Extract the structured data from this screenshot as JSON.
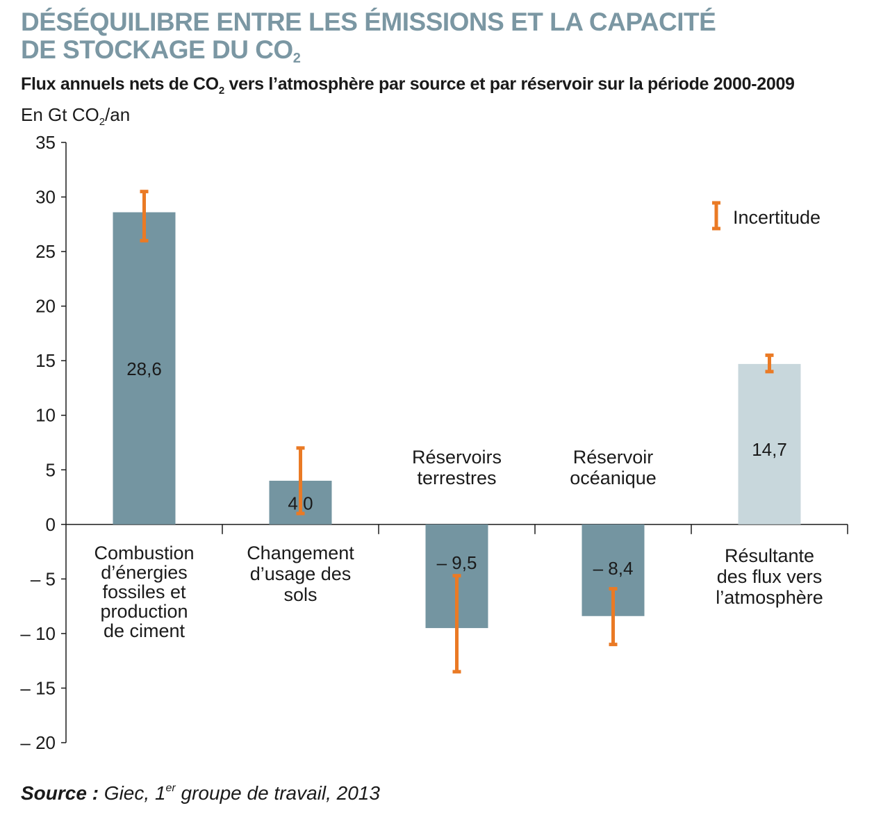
{
  "header": {
    "title_line1": "DÉSÉQUILIBRE ENTRE LES ÉMISSIONS ET LA CAPACITÉ",
    "title_line2_main": "DE STOCKAGE DU CO",
    "title_line2_sub": "2",
    "subtitle_pre": "Flux annuels nets de CO",
    "subtitle_sub": "2",
    "subtitle_post": " vers l’atmosphère par source et par réservoir sur la période 2000-2009",
    "unit_pre": "En Gt CO",
    "unit_sub": "2",
    "unit_post": "/an"
  },
  "source": {
    "label": "Source :",
    "text_pre": " Giec, 1",
    "text_sup": "er",
    "text_post": " groupe de travail, 2013"
  },
  "colors": {
    "title": "#7b97a3",
    "bar": "#7495a1",
    "bar_result": "#c8d7dc",
    "uncertainty": "#ea7a25",
    "axis": "#1a1a1a"
  },
  "chart_data": {
    "type": "bar",
    "title": "",
    "ylabel": "En Gt CO2/an",
    "ylim": [
      -20,
      35
    ],
    "yticks": [
      35,
      30,
      25,
      20,
      15,
      10,
      5,
      0,
      -5,
      -10,
      -15,
      -20
    ],
    "ytick_labels": [
      "35",
      "30",
      "25",
      "20",
      "15",
      "10",
      "5",
      "0",
      "– 5",
      "– 10",
      "– 15",
      "– 20"
    ],
    "legend": {
      "label": "Incertitude",
      "position": "top-right"
    },
    "categories": [
      {
        "lines": [
          "Combustion",
          "d’énergies",
          "fossiles et",
          "production",
          "de ciment"
        ],
        "label_position": "below"
      },
      {
        "lines": [
          "Changement",
          "d’usage des",
          "sols"
        ],
        "label_position": "below"
      },
      {
        "lines": [
          "Réservoirs",
          "terrestres"
        ],
        "label_position": "above"
      },
      {
        "lines": [
          "Réservoir",
          "océanique"
        ],
        "label_position": "above"
      },
      {
        "lines": [
          "Résultante",
          "des flux vers",
          "l’atmosphère"
        ],
        "label_position": "below"
      }
    ],
    "series": [
      {
        "values": [
          28.6,
          4.0,
          -9.5,
          -8.4,
          14.7
        ],
        "value_labels": [
          "28,6",
          "4,0",
          "– 9,5",
          "– 8,4",
          "14,7"
        ],
        "error_low": [
          26.0,
          1.0,
          -13.5,
          -11.0,
          14.0
        ],
        "error_high": [
          30.5,
          7.0,
          -4.7,
          -5.9,
          15.5
        ]
      }
    ]
  }
}
